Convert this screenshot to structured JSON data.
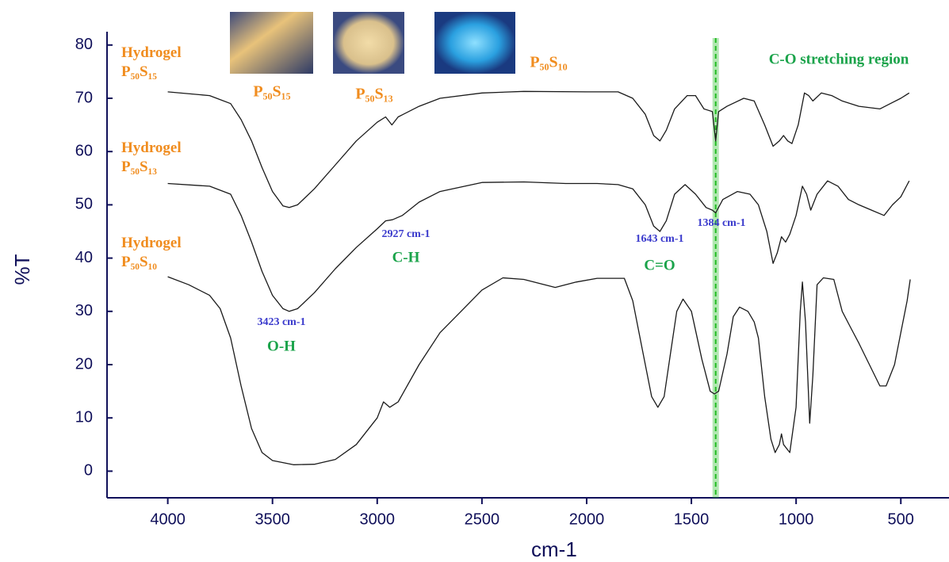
{
  "chart_data": {
    "type": "line",
    "xlabel": "cm-1",
    "ylabel": "%T",
    "xlim": [
      4290,
      270
    ],
    "ylim": [
      -5,
      82.5
    ],
    "xticks": [
      4000,
      3500,
      3000,
      2500,
      2000,
      1500,
      1000,
      500
    ],
    "yticks": [
      0,
      10,
      20,
      30,
      40,
      50,
      60,
      70,
      80
    ],
    "series": [
      {
        "name": "Hydrogel P₅₀S₁₅",
        "color": "#1a1a1a",
        "x": [
          4000,
          3800,
          3700,
          3650,
          3600,
          3550,
          3500,
          3450,
          3420,
          3380,
          3300,
          3200,
          3100,
          3000,
          2960,
          2930,
          2900,
          2800,
          2700,
          2500,
          2300,
          2000,
          1850,
          1780,
          1720,
          1680,
          1650,
          1620,
          1580,
          1520,
          1480,
          1440,
          1400,
          1384,
          1370,
          1330,
          1250,
          1200,
          1150,
          1110,
          1080,
          1060,
          1040,
          1020,
          990,
          960,
          940,
          920,
          880,
          830,
          780,
          700,
          600,
          550,
          500,
          460
        ],
        "values": [
          71.2,
          70.5,
          69,
          66,
          62,
          57,
          52.5,
          49.8,
          49.5,
          50,
          53,
          57.5,
          62,
          65.5,
          66.5,
          65,
          66.5,
          68.5,
          70,
          71,
          71.3,
          71.2,
          71.2,
          70,
          67,
          63,
          62,
          64,
          68,
          70.5,
          70.5,
          68,
          67.5,
          62,
          67.5,
          68.5,
          70,
          69.5,
          65,
          61,
          62,
          63,
          62,
          61.5,
          65,
          71,
          70.5,
          69.5,
          71,
          70.5,
          69.5,
          68.5,
          68,
          69,
          70,
          71
        ]
      },
      {
        "name": "Hydrogel P₅₀S₁₃",
        "color": "#1a1a1a",
        "x": [
          4000,
          3800,
          3700,
          3650,
          3600,
          3550,
          3500,
          3450,
          3420,
          3380,
          3300,
          3200,
          3100,
          3000,
          2960,
          2927,
          2880,
          2800,
          2700,
          2500,
          2300,
          2100,
          1950,
          1850,
          1780,
          1720,
          1680,
          1650,
          1620,
          1580,
          1530,
          1480,
          1430,
          1400,
          1384,
          1350,
          1280,
          1220,
          1180,
          1140,
          1110,
          1090,
          1070,
          1050,
          1030,
          1000,
          970,
          950,
          930,
          900,
          850,
          800,
          750,
          700,
          640,
          580,
          540,
          500,
          460
        ],
        "values": [
          54,
          53.5,
          52,
          48,
          43,
          37.5,
          33,
          30.5,
          30,
          30.5,
          33.5,
          38,
          42,
          45.5,
          47,
          47.2,
          48,
          50.5,
          52.5,
          54.2,
          54.3,
          54,
          54,
          53.8,
          53,
          50,
          46,
          45,
          47,
          52,
          53.8,
          52,
          49.5,
          49,
          48.5,
          51,
          52.5,
          52,
          50,
          45,
          39,
          41,
          44,
          43,
          44.5,
          48,
          53.5,
          52,
          49,
          52,
          54.5,
          53.5,
          51,
          50,
          49,
          48,
          50,
          51.5,
          54.5
        ]
      },
      {
        "name": "Hydrogel P₅₀S₁₀",
        "color": "#1a1a1a",
        "x": [
          4000,
          3900,
          3800,
          3750,
          3700,
          3650,
          3600,
          3550,
          3500,
          3400,
          3300,
          3200,
          3100,
          3000,
          2970,
          2940,
          2900,
          2800,
          2700,
          2600,
          2500,
          2400,
          2300,
          2200,
          2150,
          2050,
          1950,
          1820,
          1780,
          1730,
          1690,
          1660,
          1630,
          1600,
          1570,
          1540,
          1500,
          1450,
          1410,
          1390,
          1370,
          1330,
          1300,
          1270,
          1230,
          1200,
          1180,
          1150,
          1120,
          1100,
          1080,
          1070,
          1060,
          1030,
          1000,
          980,
          970,
          955,
          935,
          920,
          900,
          870,
          820,
          780,
          740,
          700,
          650,
          600,
          570,
          530,
          500,
          470,
          455
        ],
        "values": [
          36.5,
          35,
          33,
          30.5,
          25,
          16,
          8,
          3.5,
          2,
          1.2,
          1.3,
          2.2,
          5,
          10,
          13,
          12,
          13,
          20,
          26,
          30,
          34,
          36.3,
          36,
          35,
          34.5,
          35.5,
          36.2,
          36.2,
          32,
          22,
          14,
          12,
          14,
          22,
          30,
          32.3,
          30,
          21,
          15,
          14.5,
          15,
          22,
          29,
          30.8,
          30,
          28,
          25,
          14,
          6,
          3.5,
          5,
          7,
          5,
          3.5,
          12,
          30,
          35.5,
          28,
          9,
          18,
          35,
          36.3,
          36,
          30,
          27,
          24,
          20,
          16,
          16,
          20,
          26,
          32,
          36
        ]
      }
    ],
    "highlight": {
      "value": 1384,
      "label": "C-O stretching region",
      "color": "#22bb22"
    },
    "annotations": [
      {
        "text": "3423 cm-1",
        "color": "#3a3acc"
      },
      {
        "text": "O-H",
        "color": "#1aa34a"
      },
      {
        "text": "2927 cm-1",
        "color": "#3a3acc"
      },
      {
        "text": "C-H",
        "color": "#1aa34a"
      },
      {
        "text": "1643 cm-1",
        "color": "#3a3acc"
      },
      {
        "text": "C=O",
        "color": "#1aa34a"
      },
      {
        "text": "1384 cm-1",
        "color": "#3a3acc"
      }
    ],
    "insets": [
      {
        "label": "P₅₀S₁₅"
      },
      {
        "label": "P₅₀S₁₃"
      },
      {
        "label": "P₅₀S₁₀"
      }
    ]
  }
}
